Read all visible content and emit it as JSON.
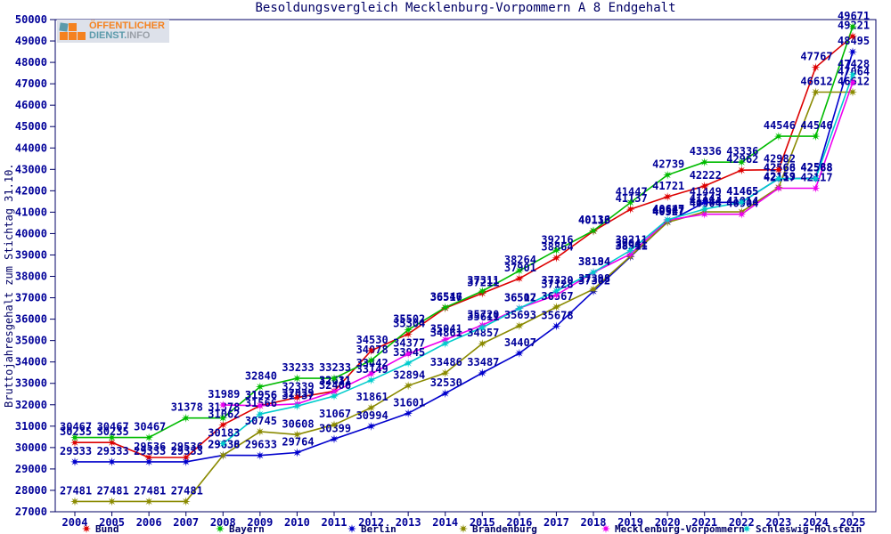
{
  "page": {
    "logo": {
      "line1": "ÖFFENTLICHER",
      "line2_a": "DIENST.",
      "line2_b": "INFO"
    }
  },
  "chart_data": {
    "type": "line",
    "title": "Besoldungsvergleich Mecklenburg-Vorpommern A 8 Endgehalt",
    "ylabel": "Bruttojahresgehalt zum Stichtag 31.10.",
    "xlabel": "",
    "ylim": [
      27000,
      50000
    ],
    "ytick_step": 1000,
    "grid": false,
    "point_labels": true,
    "legend_position": "bottom",
    "label_color": "#000099",
    "axis_color": "#000066",
    "x": [
      2004,
      2005,
      2006,
      2007,
      2008,
      2009,
      2010,
      2011,
      2012,
      2013,
      2014,
      2015,
      2016,
      2017,
      2018,
      2019,
      2020,
      2021,
      2022,
      2023,
      2024,
      2025
    ],
    "series": [
      {
        "name": "Bund",
        "color": "#dd0000",
        "values": [
          30235,
          30235,
          29536,
          29536,
          31062,
          31956,
          32339,
          32631,
          34530,
          35304,
          36517,
          37211,
          37901,
          38864,
          40113,
          41137,
          41721,
          42222,
          42962,
          42982,
          47767,
          49221
        ]
      },
      {
        "name": "Bayern",
        "color": "#00bb00",
        "values": [
          30467,
          30467,
          30467,
          31378,
          31378,
          32840,
          33233,
          33233,
          34078,
          35502,
          36546,
          37311,
          38264,
          39216,
          40136,
          41447,
          42739,
          43336,
          43336,
          44546,
          44546,
          49671
        ]
      },
      {
        "name": "Berlin",
        "color": "#0000cc",
        "values": [
          29333,
          29333,
          29333,
          29333,
          29636,
          29633,
          29764,
          30399,
          30994,
          31601,
          32530,
          33487,
          34407,
          35678,
          37302,
          38911,
          40547,
          41449,
          41465,
          42566,
          42588,
          48495
        ]
      },
      {
        "name": "Brandenburg",
        "color": "#8a8a00",
        "values": [
          27481,
          27481,
          27481,
          27481,
          29638,
          30745,
          30608,
          31067,
          31861,
          32894,
          33486,
          34857,
          35693,
          36567,
          37398,
          38941,
          40527,
          41014,
          41014,
          42159,
          46612,
          46612
        ]
      },
      {
        "name": "Mecklenburg-Vorpommern",
        "color": "#ee00ee",
        "values": [
          null,
          null,
          null,
          null,
          31989,
          31956,
          32039,
          32611,
          33442,
          34377,
          35041,
          35720,
          36512,
          37128,
          38184,
          39041,
          40627,
          40904,
          40904,
          42117,
          42117,
          47064
        ]
      },
      {
        "name": "Schleswig-Holstein",
        "color": "#00cccc",
        "values": [
          null,
          null,
          null,
          null,
          30183,
          31566,
          31937,
          32406,
          33149,
          33945,
          34861,
          35611,
          36507,
          37320,
          38194,
          39211,
          40647,
          41143,
          41465,
          42568,
          42568,
          47428
        ]
      }
    ]
  }
}
